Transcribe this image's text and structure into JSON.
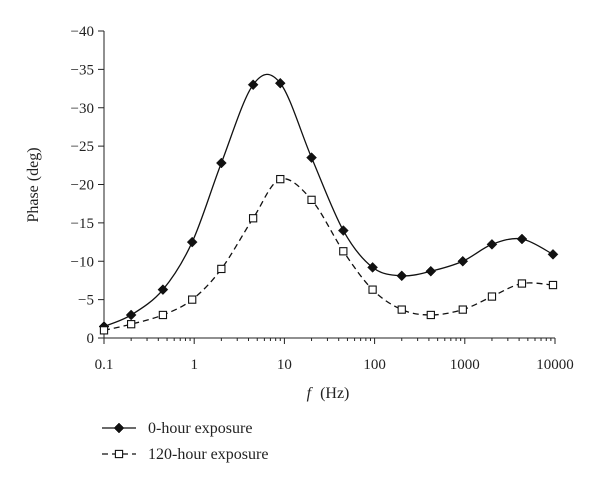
{
  "chart_data": {
    "type": "line",
    "xscale": "log",
    "xlim": [
      0.1,
      10000
    ],
    "ylim": [
      0,
      -40
    ],
    "grid": false,
    "legend_position": "bottom-left",
    "xlabel_var": "f",
    "xlabel_unit": "(Hz)",
    "ylabel": "Phase (deg)",
    "xticks": [
      {
        "value": 0.1,
        "label": "0.1"
      },
      {
        "value": 1,
        "label": "1"
      },
      {
        "value": 10,
        "label": "10"
      },
      {
        "value": 100,
        "label": "100"
      },
      {
        "value": 1000,
        "label": "1000"
      },
      {
        "value": 10000,
        "label": "10000"
      }
    ],
    "yticks": [
      {
        "value": 0,
        "label": "0"
      },
      {
        "value": -5,
        "label": "−5"
      },
      {
        "value": -10,
        "label": "−10"
      },
      {
        "value": -15,
        "label": "−15"
      },
      {
        "value": -20,
        "label": "−20"
      },
      {
        "value": -25,
        "label": "−25"
      },
      {
        "value": -30,
        "label": "−30"
      },
      {
        "value": -35,
        "label": "−35"
      },
      {
        "value": -40,
        "label": "−40"
      }
    ],
    "series": [
      {
        "name": "0-hour exposure",
        "line_style": "solid",
        "marker": "filled-diamond",
        "color": "#111111",
        "x": [
          0.1,
          0.2,
          0.45,
          0.95,
          2.0,
          4.5,
          9.0,
          20,
          45,
          95,
          200,
          420,
          950,
          2000,
          4300,
          9500
        ],
        "y": [
          -1.5,
          -3.0,
          -6.3,
          -12.5,
          -22.8,
          -33.0,
          -33.2,
          -23.5,
          -14.0,
          -9.2,
          -8.1,
          -8.7,
          -10.0,
          -12.2,
          -12.9,
          -10.9
        ]
      },
      {
        "name": "120-hour exposure",
        "line_style": "dashed",
        "marker": "open-square",
        "color": "#111111",
        "x": [
          0.1,
          0.2,
          0.45,
          0.95,
          2.0,
          4.5,
          9.0,
          20,
          45,
          95,
          200,
          420,
          950,
          2000,
          4300,
          9500
        ],
        "y": [
          -1.0,
          -1.8,
          -3.0,
          -5.0,
          -9.0,
          -15.6,
          -20.7,
          -18.0,
          -11.3,
          -6.3,
          -3.7,
          -3.0,
          -3.7,
          -5.4,
          -7.1,
          -6.9
        ]
      }
    ],
    "legend": [
      {
        "label": "0-hour exposure"
      },
      {
        "label": "120-hour exposure"
      }
    ]
  }
}
